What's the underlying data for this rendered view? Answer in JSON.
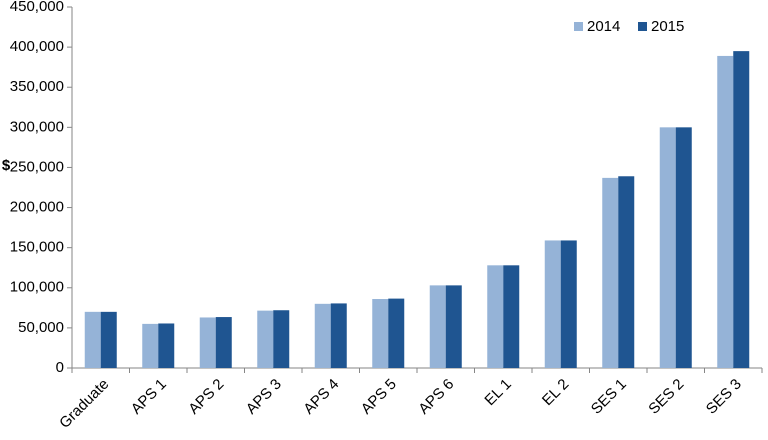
{
  "chart_data": {
    "type": "bar",
    "y_label": "$",
    "categories": [
      "Graduate",
      "APS 1",
      "APS 2",
      "APS 3",
      "APS 4",
      "APS 5",
      "APS 6",
      "EL 1",
      "EL 2",
      "SES 1",
      "SES 2",
      "SES 3"
    ],
    "series": [
      {
        "name": "2014",
        "color": "#95b3d7",
        "values": [
          70000,
          55000,
          63000,
          71500,
          80000,
          86000,
          103000,
          128000,
          159000,
          237000,
          300000,
          389000
        ]
      },
      {
        "name": "2015",
        "color": "#1f5591",
        "values": [
          70000,
          55500,
          63500,
          72000,
          80500,
          86500,
          103000,
          128000,
          159000,
          239000,
          300000,
          395000
        ]
      }
    ],
    "ylim": [
      0,
      450000
    ],
    "yticks": [
      0,
      {
        "value": 50000,
        "label": "50,000"
      },
      {
        "value": 100000,
        "label": "100,000"
      },
      {
        "value": 150000,
        "label": "150,000"
      },
      {
        "value": 200000,
        "label": "200,000"
      },
      {
        "value": 250000,
        "label": "250,000"
      },
      {
        "value": 300000,
        "label": "300,000"
      },
      {
        "value": 350000,
        "label": "350,000"
      },
      {
        "value": 400000,
        "label": "400,000"
      },
      {
        "value": 450000,
        "label": "450,000"
      }
    ],
    "grid": false,
    "legend": "top-right"
  }
}
